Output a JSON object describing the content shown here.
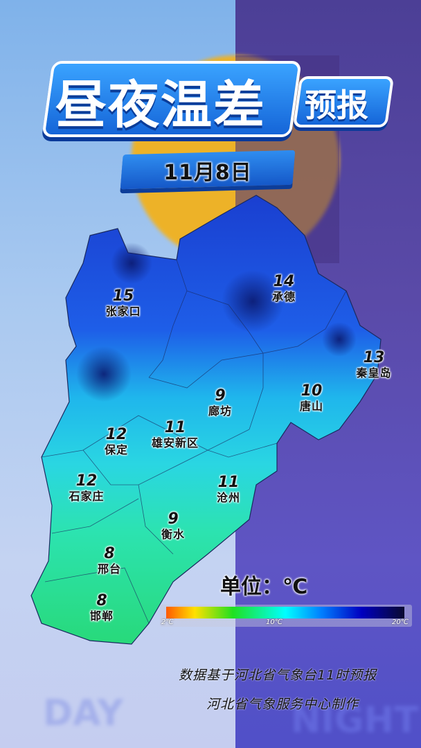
{
  "header": {
    "title": "昼夜温差",
    "subtitle": "预报",
    "date": "11月8日"
  },
  "cities": [
    {
      "name": "张家口",
      "value": "15"
    },
    {
      "name": "承德",
      "value": "14"
    },
    {
      "name": "秦皇岛",
      "value": "13"
    },
    {
      "name": "唐山",
      "value": "10"
    },
    {
      "name": "廊坊",
      "value": "9"
    },
    {
      "name": "雄安新区",
      "value": "11"
    },
    {
      "name": "保定",
      "value": "12"
    },
    {
      "name": "石家庄",
      "value": "12"
    },
    {
      "name": "沧州",
      "value": "11"
    },
    {
      "name": "衡水",
      "value": "9"
    },
    {
      "name": "邢台",
      "value": "8"
    },
    {
      "name": "邯郸",
      "value": "8"
    }
  ],
  "legend": {
    "unit_label": "单位：℃",
    "min_label": "2℃",
    "mid_label": "10℃",
    "max_label": "20℃",
    "colors": [
      "#ff5a00",
      "#ffe000",
      "#20e020",
      "#00ffff",
      "#0080ff",
      "#0000c0",
      "#0a0a30"
    ]
  },
  "footer": {
    "source": "数据基于河北省气象台11时预报",
    "producer": "河北省气象服务中心制作"
  },
  "background": {
    "day_watermark": "DAY",
    "night_watermark": "NIGHT"
  }
}
